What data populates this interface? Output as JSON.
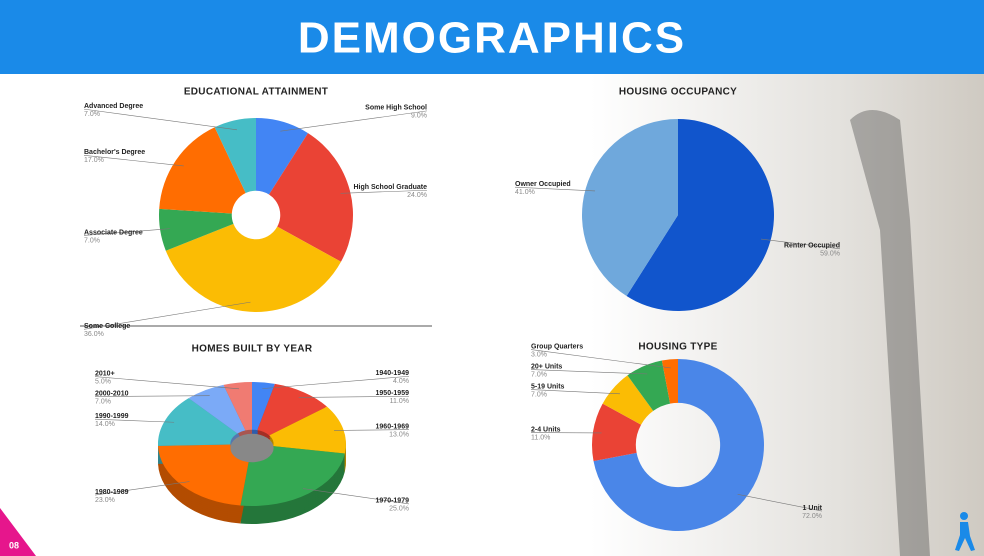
{
  "title": "DEMOGRAPHICS",
  "page_number": "08",
  "chart_data": [
    {
      "type": "donut",
      "title": "EDUCATIONAL ATTAINMENT",
      "categories": [
        "Some High School",
        "High School Graduate",
        "Some College",
        "Associate Degree",
        "Bachelor's Degree",
        "Advanced Degree"
      ],
      "values": [
        9,
        24,
        36,
        7,
        17,
        7
      ],
      "value_labels": [
        "9.0%",
        "24.0%",
        "36.0%",
        "7.0%",
        "17.0%",
        "7.0%"
      ],
      "colors": [
        "#4285f4",
        "#ea4335",
        "#fbbc04",
        "#34a853",
        "#ff6d01",
        "#46bdc6"
      ]
    },
    {
      "type": "pie",
      "title": "HOUSING OCCUPANCY",
      "categories": [
        "Renter Occupied",
        "Owner Occupied"
      ],
      "values": [
        59,
        41
      ],
      "value_labels": [
        "59.0%",
        "41.0%"
      ],
      "colors": [
        "#1155cc",
        "#6fa8dc"
      ]
    },
    {
      "type": "donut3d",
      "title": "HOMES BUILT BY YEAR",
      "categories": [
        "1940-1949",
        "1950-1959",
        "1960-1969",
        "1970-1979",
        "1980-1989",
        "1990-1999",
        "2000-2010",
        "2010+"
      ],
      "values": [
        4,
        11,
        13,
        25,
        23,
        14,
        7,
        5
      ],
      "value_labels": [
        "4.0%",
        "11.0%",
        "13.0%",
        "25.0%",
        "23.0%",
        "14.0%",
        "7.0%",
        "5.0%"
      ],
      "colors": [
        "#4285f4",
        "#ea4335",
        "#fbbc04",
        "#34a853",
        "#ff6d01",
        "#46bdc6",
        "#7baaf7",
        "#f07b72"
      ]
    },
    {
      "type": "donut",
      "title": "HOUSING TYPE",
      "categories": [
        "1 Unit",
        "2-4 Units",
        "5-19 Units",
        "20+ Units",
        "Group Quarters"
      ],
      "values": [
        72,
        11,
        7,
        7,
        3
      ],
      "value_labels": [
        "72.0%",
        "11.0%",
        "7.0%",
        "7.0%",
        "3.0%"
      ],
      "colors": [
        "#4a86e8",
        "#ea4335",
        "#fbbc04",
        "#34a853",
        "#ff6d01"
      ]
    }
  ]
}
